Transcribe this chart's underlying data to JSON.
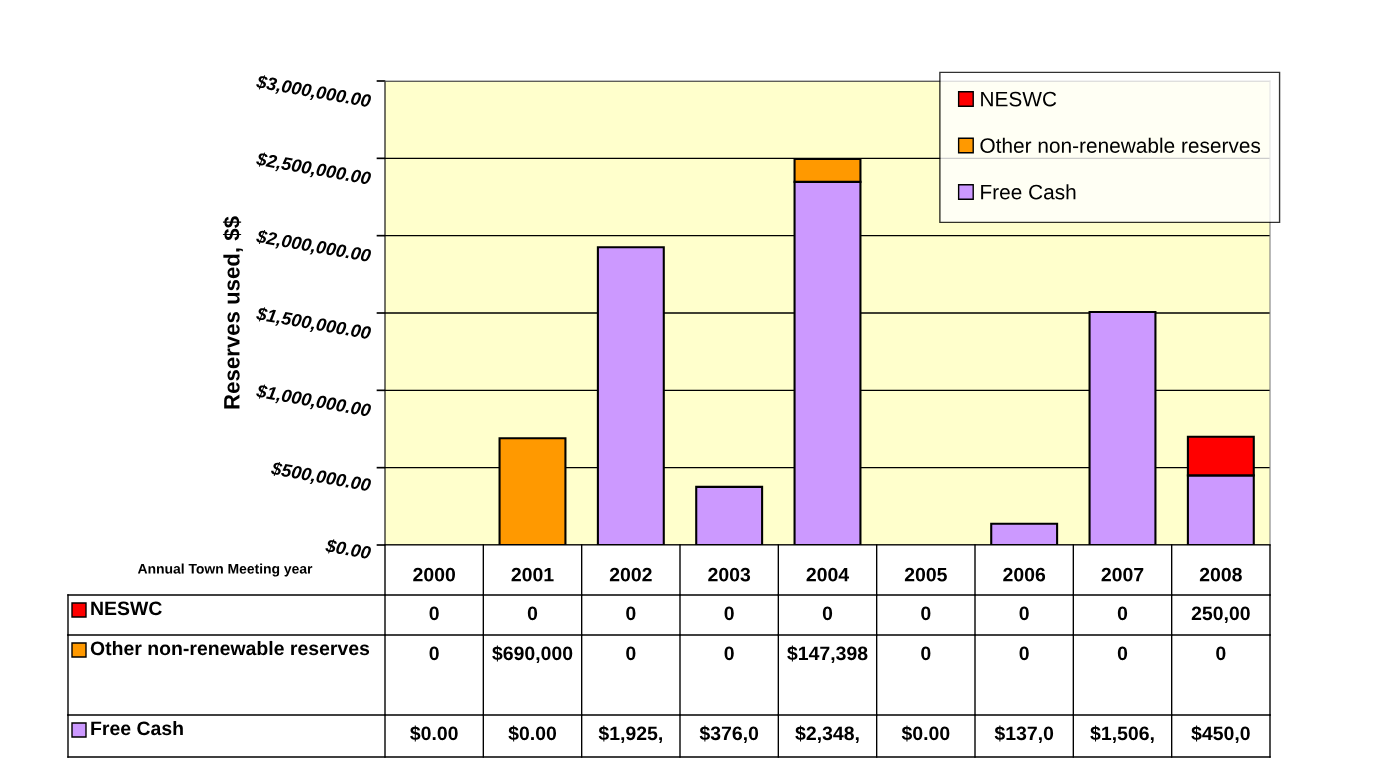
{
  "chart_data": {
    "type": "bar",
    "stacked": true,
    "xlabel": "Annual Town Meeting year",
    "ylabel": "Reserves used, $$",
    "categories": [
      "2000",
      "2001",
      "2002",
      "2003",
      "2004",
      "2005",
      "2006",
      "2007",
      "2008"
    ],
    "series": [
      {
        "name": "Free Cash",
        "color": "#cc99ff",
        "values": [
          0,
          0,
          1925000,
          376000,
          2348000,
          0,
          137000,
          1506000,
          450000
        ]
      },
      {
        "name": "Other non-renewable reserves",
        "color": "#ff9900",
        "values": [
          0,
          690000,
          0,
          0,
          147398,
          0,
          0,
          0,
          0
        ]
      },
      {
        "name": "NESWC",
        "color": "#ff0000",
        "values": [
          0,
          0,
          0,
          0,
          0,
          0,
          0,
          0,
          250000
        ]
      }
    ],
    "annotations": [
      "0",
      "0",
      "0",
      "0",
      "0",
      "0",
      "0",
      "0",
      "250,00",
      "0",
      "$690,000",
      "0",
      "0",
      "$147,398",
      "0",
      "0",
      "0",
      "0",
      "$0.00",
      "$0.00",
      "$1,925,",
      "$376,0",
      "$2,348,",
      "$0.00",
      "$137,0",
      "$1,506,",
      "$450,0"
    ],
    "ylim": [
      0,
      3000000
    ],
    "yticks": [
      {
        "value": 0,
        "label": "$0.00"
      },
      {
        "value": 500000,
        "label": "$500,000.00"
      },
      {
        "value": 1000000,
        "label": "$1,000,000.00"
      },
      {
        "value": 1500000,
        "label": "$1,500,000.00"
      },
      {
        "value": 2000000,
        "label": "$2,000,000.00"
      },
      {
        "value": 2500000,
        "label": "$2,500,000.00"
      },
      {
        "value": 3000000,
        "label": "$3,000,000.00"
      }
    ],
    "grid": "y",
    "legend": "top right"
  }
}
